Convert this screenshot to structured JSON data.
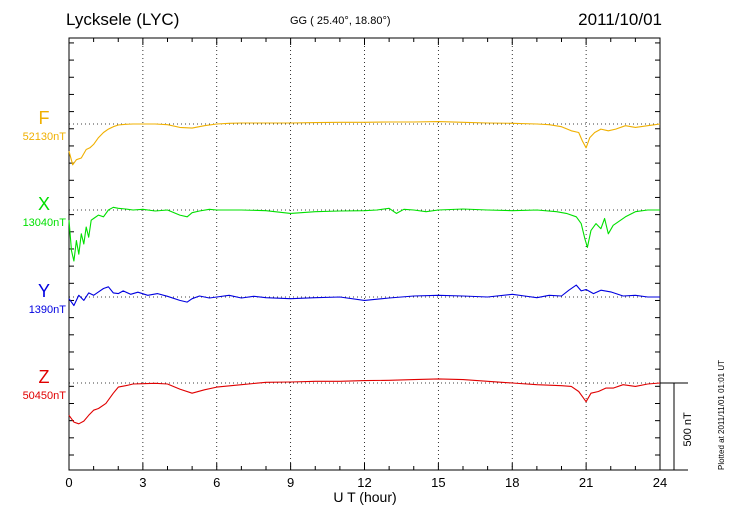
{
  "header": {
    "station": "Lycksele (LYC)",
    "coords": "GG ( 25.40°,  18.80°)",
    "date": "2011/10/01"
  },
  "side_note": "Plotted at 2011/11/01 01:01  UT",
  "scale_bar_label": "500 nT",
  "chart_data": {
    "type": "line",
    "title": "Lycksele (LYC)",
    "xlabel": "U T (hour)",
    "xlim": [
      0,
      24
    ],
    "xticks": [
      "0",
      "3",
      "6",
      "9",
      "12",
      "15",
      "18",
      "21",
      "24"
    ],
    "grid": true,
    "scale_bar_nT": 500,
    "series": [
      {
        "name": "F",
        "baseline_label": "52130nT",
        "color": "#f0b000",
        "x": [
          0,
          0.15,
          0.3,
          0.5,
          0.7,
          0.85,
          1.0,
          1.2,
          1.4,
          1.6,
          1.8,
          2.0,
          2.3,
          2.6,
          3.0,
          3.5,
          4.0,
          4.5,
          5.0,
          5.5,
          6.0,
          6.5,
          7.0,
          8.0,
          9.0,
          10.0,
          11.0,
          12.0,
          13.0,
          14.0,
          15.0,
          16.0,
          17.0,
          18.0,
          19.0,
          19.5,
          20.0,
          20.4,
          20.7,
          20.85,
          21.0,
          21.15,
          21.35,
          21.6,
          21.9,
          22.2,
          22.6,
          23.0,
          23.5,
          24.0
        ],
        "y": [
          -80,
          -120,
          -105,
          -100,
          -75,
          -70,
          -60,
          -40,
          -25,
          -15,
          -8,
          -3,
          -1,
          0,
          0,
          0,
          -2,
          -10,
          -12,
          -5,
          0,
          2,
          3,
          3,
          3,
          4,
          5,
          5,
          6,
          6,
          7,
          5,
          3,
          2,
          0,
          -2,
          -8,
          -20,
          -25,
          -50,
          -70,
          -40,
          -25,
          -15,
          -20,
          -15,
          -5,
          -10,
          -5,
          0
        ]
      },
      {
        "name": "X",
        "baseline_label": "13040nT",
        "color": "#00e000",
        "x": [
          0,
          0.1,
          0.2,
          0.3,
          0.4,
          0.5,
          0.6,
          0.7,
          0.8,
          0.9,
          1.0,
          1.2,
          1.4,
          1.6,
          1.8,
          2.0,
          2.3,
          2.6,
          3.0,
          3.5,
          4.0,
          4.5,
          4.8,
          5.0,
          5.3,
          5.7,
          6.0,
          7.0,
          8.0,
          9.0,
          10.0,
          11.0,
          12.0,
          12.5,
          13.0,
          13.3,
          13.6,
          14.0,
          14.5,
          15.0,
          16.0,
          17.0,
          18.0,
          19.0,
          19.8,
          20.2,
          20.6,
          20.8,
          20.95,
          21.05,
          21.2,
          21.4,
          21.6,
          21.75,
          21.9,
          22.1,
          22.3,
          22.6,
          23.0,
          23.5,
          24.0
        ],
        "y": [
          -30,
          -120,
          -150,
          -90,
          -130,
          -70,
          -100,
          -50,
          -80,
          -30,
          -25,
          -15,
          -20,
          0,
          8,
          5,
          3,
          0,
          2,
          -3,
          0,
          -15,
          -20,
          -8,
          -3,
          2,
          0,
          0,
          -2,
          -10,
          -5,
          -3,
          -2,
          0,
          5,
          -10,
          2,
          0,
          -5,
          0,
          3,
          0,
          -2,
          0,
          -5,
          -10,
          -20,
          -40,
          -85,
          -110,
          -60,
          -40,
          -55,
          -25,
          -70,
          -45,
          -35,
          -20,
          -5,
          0,
          0
        ]
      },
      {
        "name": "Y",
        "baseline_label": "1390nT",
        "color": "#0000e0",
        "x": [
          0,
          0.2,
          0.4,
          0.6,
          0.8,
          1.0,
          1.2,
          1.4,
          1.6,
          1.8,
          2.0,
          2.2,
          2.5,
          2.8,
          3.2,
          3.6,
          4.0,
          4.5,
          4.8,
          5.0,
          5.3,
          5.7,
          6.0,
          6.5,
          7.0,
          7.5,
          8.0,
          9.0,
          10.0,
          11.0,
          12.0,
          13.0,
          14.0,
          15.0,
          16.0,
          17.0,
          18.0,
          18.5,
          19.0,
          19.5,
          20.0,
          20.3,
          20.6,
          20.8,
          21.0,
          21.3,
          21.6,
          22.0,
          22.5,
          23.0,
          23.5,
          24.0
        ],
        "y": [
          -5,
          -25,
          5,
          -10,
          12,
          5,
          15,
          25,
          30,
          12,
          10,
          18,
          8,
          14,
          5,
          10,
          2,
          -10,
          -15,
          -5,
          3,
          -3,
          0,
          5,
          -3,
          2,
          -2,
          -5,
          -2,
          0,
          -10,
          -3,
          3,
          5,
          3,
          0,
          8,
          3,
          -2,
          5,
          3,
          20,
          35,
          18,
          22,
          10,
          20,
          15,
          3,
          5,
          0,
          0
        ]
      },
      {
        "name": "Z",
        "baseline_label": "50450nT",
        "color": "#e00000",
        "x": [
          0,
          0.2,
          0.4,
          0.6,
          0.8,
          1.0,
          1.2,
          1.5,
          1.8,
          2.0,
          2.3,
          2.6,
          3.0,
          3.5,
          4.0,
          4.5,
          5.0,
          5.5,
          6.0,
          7.0,
          8.0,
          9.0,
          10.0,
          11.0,
          12.0,
          13.0,
          14.0,
          15.0,
          16.0,
          17.0,
          18.0,
          19.0,
          20.0,
          20.4,
          20.7,
          20.85,
          21.0,
          21.2,
          21.5,
          21.8,
          22.1,
          22.5,
          23.0,
          23.5,
          24.0
        ],
        "y": [
          -95,
          -115,
          -120,
          -112,
          -95,
          -80,
          -75,
          -60,
          -30,
          -12,
          -8,
          -3,
          -2,
          -1,
          -3,
          -18,
          -30,
          -20,
          -12,
          -5,
          2,
          3,
          5,
          5,
          7,
          8,
          10,
          12,
          10,
          5,
          0,
          -5,
          -8,
          -10,
          -25,
          -40,
          -55,
          -30,
          -25,
          -15,
          -15,
          -5,
          -10,
          -3,
          0
        ]
      }
    ]
  }
}
